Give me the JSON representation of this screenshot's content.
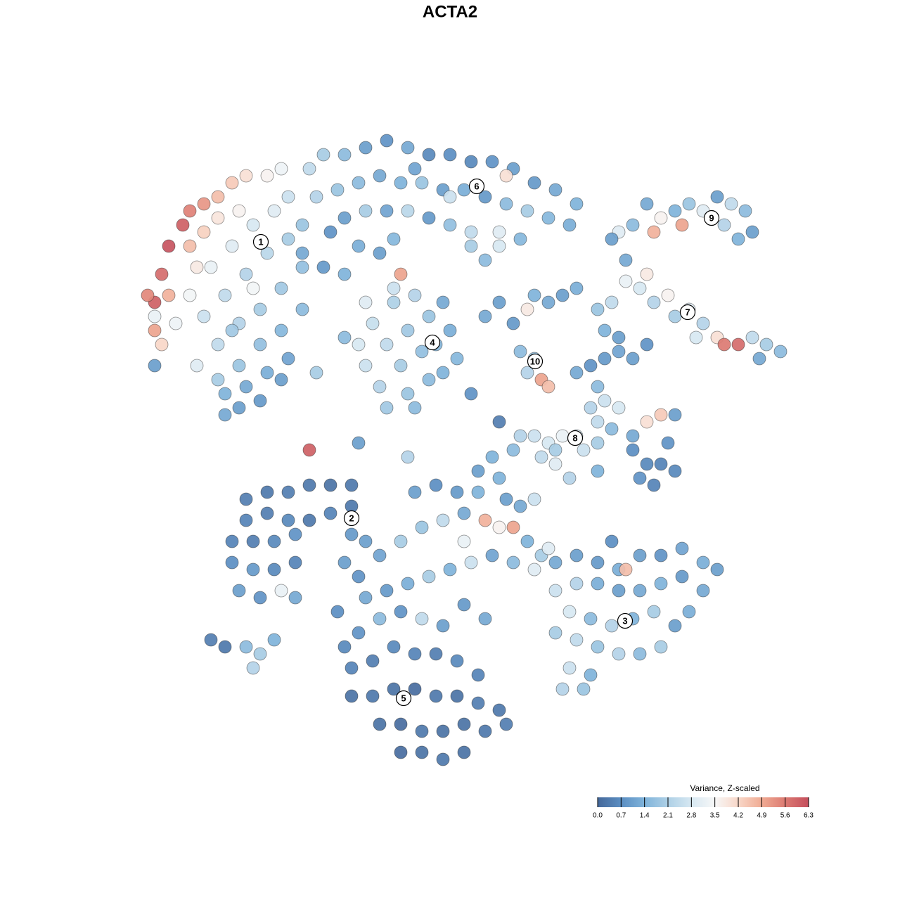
{
  "chart_data": {
    "type": "scatter",
    "title": "ACTA2",
    "legend_title": "Variance, Z-scaled",
    "clim": [
      0,
      6.3
    ],
    "cticks": [
      {
        "value": 0,
        "label": "0.0"
      },
      0.7,
      1.4,
      2.1,
      2.8,
      3.5,
      4.2,
      4.9,
      5.6,
      6.3
    ],
    "colorscale": [
      "#45689a",
      "#5b8ec2",
      "#7fb3da",
      "#aed0e6",
      "#d7e8f2",
      "#f7f7f7",
      "#f8d7c8",
      "#f0ab93",
      "#dc7a72",
      "#c44e5c"
    ],
    "legend_position": "bottom-right",
    "xlim": [
      0,
      94
    ],
    "ylim": [
      0,
      92
    ],
    "x": [
      3,
      4,
      5,
      7,
      8,
      10,
      12,
      14,
      16,
      19,
      21,
      3,
      2,
      5,
      8,
      10,
      12,
      15,
      9,
      4,
      3,
      6,
      8,
      11,
      14,
      17,
      20,
      22,
      10,
      13,
      16,
      19,
      22,
      24,
      12,
      15,
      18,
      21,
      24,
      9,
      12,
      15,
      18,
      21,
      24,
      13,
      16,
      19,
      22,
      13,
      15,
      18,
      21,
      17,
      14,
      25,
      27,
      30,
      33,
      36,
      39,
      42,
      45,
      48,
      51,
      54,
      57,
      60,
      63,
      26,
      29,
      32,
      35,
      38,
      41,
      44,
      47,
      50,
      53,
      56,
      59,
      62,
      30,
      33,
      36,
      39,
      42,
      45,
      48,
      52,
      55,
      28,
      32,
      35,
      27,
      30,
      24,
      45,
      53,
      37,
      40,
      32,
      33,
      34,
      35,
      36,
      37,
      38,
      39,
      39,
      40,
      41,
      42,
      42,
      43,
      44,
      45,
      46,
      44,
      36,
      40,
      33,
      38,
      37,
      50,
      52,
      54,
      56,
      57,
      59,
      61,
      63,
      55,
      57,
      58,
      59,
      56,
      48,
      50,
      52,
      71,
      73,
      75,
      77,
      79,
      81,
      83,
      85,
      87,
      88,
      86,
      84,
      74,
      78,
      69,
      70,
      68,
      66,
      68,
      70,
      72,
      74,
      76,
      77,
      79,
      81,
      83,
      84,
      86,
      88,
      90,
      92,
      89,
      80,
      73,
      67,
      69,
      63,
      65,
      67,
      69,
      71,
      73,
      66,
      65,
      67,
      69,
      66,
      68,
      71,
      73,
      75,
      77,
      71,
      73,
      75,
      77,
      72,
      74,
      76,
      55,
      57,
      59,
      61,
      63,
      60,
      54,
      51,
      49,
      52,
      58,
      66,
      64,
      60,
      62,
      66,
      25,
      32,
      39,
      52,
      48,
      30,
      26,
      3,
      16,
      19,
      22,
      25,
      28,
      31,
      16,
      19,
      22,
      25,
      28,
      31,
      14,
      17,
      20,
      23,
      14,
      17,
      20,
      23,
      15,
      18,
      21,
      23,
      31,
      33,
      11,
      13,
      16,
      18,
      17,
      20,
      30,
      32,
      35,
      38,
      41,
      44,
      47,
      50,
      52,
      54,
      56,
      58,
      40,
      43,
      46,
      49,
      53,
      55,
      57,
      47,
      33,
      36,
      39,
      42,
      45,
      48,
      51,
      54,
      57,
      32,
      35,
      38,
      41,
      44,
      47,
      50,
      31,
      34,
      37,
      40,
      43,
      46,
      49,
      31,
      34,
      37,
      40,
      43,
      46,
      49,
      52,
      35,
      38,
      41,
      44,
      47,
      50,
      53,
      38,
      41,
      44,
      47,
      30,
      29,
      60,
      63,
      66,
      69,
      72,
      75,
      78,
      81,
      83,
      60,
      63,
      66,
      69,
      72,
      75,
      78,
      81,
      62,
      65,
      68,
      71,
      74,
      77,
      79,
      60,
      63,
      66,
      69,
      72,
      75,
      62,
      65,
      61,
      64,
      70,
      68,
      59
    ],
    "y": [
      67,
      71,
      75,
      78,
      80,
      81,
      82,
      84,
      85,
      85,
      86,
      63,
      68,
      68,
      75,
      77,
      79,
      80,
      72,
      61,
      65,
      64,
      68,
      72,
      75,
      78,
      80,
      82,
      65,
      68,
      71,
      74,
      76,
      78,
      61,
      64,
      66,
      69,
      72,
      58,
      56,
      58,
      61,
      63,
      66,
      54,
      55,
      57,
      59,
      51,
      52,
      53,
      56,
      69,
      63,
      86,
      88,
      88,
      89,
      90,
      89,
      88,
      88,
      87,
      87,
      86,
      84,
      83,
      81,
      82,
      83,
      84,
      85,
      84,
      84,
      83,
      83,
      82,
      81,
      80,
      79,
      78,
      79,
      80,
      80,
      80,
      79,
      78,
      77,
      77,
      76,
      77,
      75,
      74,
      72,
      71,
      74,
      82,
      85,
      76,
      86,
      61,
      58,
      64,
      55,
      61,
      67,
      58,
      63,
      54,
      68,
      60,
      56,
      65,
      61,
      57,
      63,
      59,
      67,
      52,
      52,
      67,
      71,
      69,
      65,
      67,
      64,
      66,
      68,
      67,
      68,
      69,
      60,
      59,
      56,
      55,
      57,
      75,
      73,
      75,
      78,
      81,
      79,
      80,
      81,
      80,
      82,
      81,
      80,
      77,
      76,
      78,
      77,
      78,
      77,
      73,
      76,
      66,
      67,
      70,
      69,
      67,
      68,
      65,
      66,
      64,
      62,
      61,
      61,
      62,
      61,
      60,
      59,
      62,
      71,
      63,
      62,
      57,
      58,
      59,
      60,
      59,
      61,
      55,
      52,
      53,
      52,
      50,
      49,
      48,
      50,
      51,
      51,
      46,
      44,
      44,
      43,
      42,
      41,
      47,
      48,
      48,
      47,
      48,
      48,
      46,
      46,
      45,
      43,
      42,
      45,
      47,
      46,
      44,
      42,
      43,
      46,
      47,
      45,
      50,
      54,
      62,
      57,
      58,
      39,
      40,
      40,
      41,
      41,
      41,
      36,
      37,
      36,
      36,
      37,
      38,
      33,
      33,
      33,
      34,
      30,
      29,
      29,
      30,
      26,
      25,
      26,
      25,
      34,
      33,
      19,
      18,
      18,
      17,
      15,
      19,
      30,
      28,
      31,
      33,
      35,
      36,
      37,
      36,
      35,
      35,
      33,
      31,
      40,
      41,
      40,
      40,
      39,
      38,
      39,
      33,
      25,
      26,
      27,
      28,
      29,
      30,
      31,
      30,
      29,
      20,
      22,
      23,
      22,
      21,
      24,
      22,
      15,
      16,
      18,
      17,
      17,
      16,
      14,
      11,
      11,
      12,
      12,
      11,
      11,
      10,
      9,
      7,
      7,
      6,
      6,
      7,
      6,
      7,
      3,
      3,
      2,
      3,
      18,
      23,
      30,
      31,
      30,
      29,
      31,
      31,
      32,
      30,
      29,
      26,
      27,
      27,
      26,
      26,
      27,
      28,
      26,
      23,
      22,
      21,
      22,
      23,
      21,
      23,
      20,
      19,
      18,
      17,
      17,
      18,
      15,
      14,
      12,
      12,
      29,
      33,
      32
    ],
    "values": [
      6.0,
      5.8,
      6.2,
      6.0,
      5.5,
      5.2,
      4.6,
      4.4,
      4.0,
      3.6,
      3.3,
      5.0,
      5.4,
      4.8,
      4.6,
      4.3,
      3.9,
      3.6,
      3.8,
      4.2,
      3.2,
      3.3,
      3.4,
      3.2,
      3.0,
      2.8,
      3.0,
      2.6,
      2.6,
      2.4,
      2.2,
      2.3,
      2.0,
      1.8,
      2.4,
      2.2,
      2.0,
      1.9,
      1.7,
      3.0,
      2.0,
      1.8,
      1.7,
      1.5,
      1.6,
      1.4,
      1.2,
      1.3,
      1.1,
      1.2,
      1.0,
      0.9,
      1.0,
      3.4,
      1.9,
      2.4,
      2.0,
      1.6,
      1.0,
      0.8,
      1.2,
      0.6,
      0.7,
      0.6,
      0.8,
      1.0,
      0.9,
      1.2,
      1.4,
      2.2,
      1.8,
      1.6,
      1.2,
      1.4,
      1.8,
      1.0,
      1.3,
      0.9,
      1.6,
      2.0,
      1.5,
      1.3,
      1.0,
      2.0,
      1.1,
      2.3,
      0.9,
      1.7,
      2.4,
      3.0,
      1.5,
      0.8,
      1.3,
      1.0,
      0.9,
      1.4,
      1.2,
      2.6,
      4.0,
      1.5,
      1.1,
      2.8,
      2.6,
      2.5,
      2.2,
      2.4,
      2.1,
      2.0,
      1.9,
      1.8,
      2.2,
      1.7,
      1.6,
      1.8,
      1.5,
      1.4,
      1.3,
      1.5,
      1.2,
      1.9,
      1.6,
      3.0,
      5.0,
      2.6,
      1.2,
      1.0,
      0.9,
      3.8,
      1.4,
      1.2,
      1.0,
      1.3,
      1.6,
      1.8,
      5.0,
      4.6,
      2.2,
      2.0,
      1.6,
      2.8,
      1.6,
      1.2,
      3.6,
      1.4,
      1.8,
      3.0,
      1.0,
      2.4,
      1.6,
      1.0,
      1.4,
      2.2,
      4.8,
      5.0,
      3.0,
      1.2,
      1.0,
      1.8,
      2.4,
      3.2,
      2.8,
      2.2,
      3.6,
      2.0,
      3.0,
      2.2,
      4.0,
      5.6,
      5.8,
      2.4,
      2.0,
      1.6,
      1.2,
      2.8,
      3.8,
      1.4,
      1.0,
      1.2,
      0.8,
      0.9,
      1.1,
      1.0,
      0.8,
      1.6,
      2.2,
      2.6,
      2.8,
      2.4,
      1.6,
      1.2,
      4.0,
      4.4,
      1.0,
      0.7,
      0.6,
      0.5,
      0.6,
      0.8,
      0.5,
      0.8,
      2.2,
      2.6,
      2.8,
      3.2,
      2.8,
      2.0,
      1.6,
      1.4,
      1.0,
      1.4,
      2.4,
      2.0,
      2.6,
      3.0,
      2.2,
      1.4,
      6.0,
      1.0,
      2.2,
      0.4,
      0.8,
      1.6,
      2.0,
      1.0,
      0.4,
      0.3,
      0.4,
      0.3,
      0.2,
      0.3,
      0.5,
      0.4,
      0.6,
      0.3,
      0.5,
      0.3,
      0.5,
      0.4,
      0.6,
      0.8,
      0.7,
      0.9,
      0.6,
      0.5,
      1.0,
      0.8,
      3.2,
      1.2,
      0.9,
      1.0,
      0.4,
      0.3,
      1.6,
      2.0,
      2.2,
      1.4,
      1.0,
      0.8,
      1.1,
      2.0,
      1.8,
      2.4,
      1.2,
      4.8,
      3.6,
      5.0,
      1.4,
      2.0,
      1.0,
      0.7,
      0.9,
      1.4,
      1.0,
      1.2,
      2.6,
      3.2,
      1.2,
      0.9,
      1.3,
      2.0,
      1.4,
      2.6,
      1.1,
      1.6,
      3.0,
      0.8,
      1.6,
      0.8,
      2.4,
      1.0,
      0.9,
      1.2,
      0.5,
      0.4,
      0.6,
      0.5,
      0.4,
      0.6,
      0.5,
      0.2,
      0.3,
      0.2,
      0.1,
      0.3,
      0.2,
      0.4,
      0.3,
      0.2,
      0.1,
      0.3,
      0.2,
      0.2,
      0.3,
      0.4,
      0.1,
      0.2,
      0.3,
      0.2,
      0.6,
      0.7,
      1.2,
      1.0,
      0.9,
      1.3,
      1.0,
      0.8,
      1.1,
      1.3,
      1.0,
      2.6,
      2.2,
      1.3,
      1.0,
      1.2,
      1.4,
      0.9,
      1.2,
      2.8,
      1.6,
      2.2,
      1.4,
      2.0,
      1.0,
      1.3,
      2.0,
      2.4,
      1.8,
      2.2,
      1.6,
      2.0,
      2.6,
      1.4,
      2.2,
      1.8,
      4.6,
      0.7,
      3.0
    ],
    "clusters": [
      {
        "label": "1",
        "x": 18.1,
        "y": 75.6
      },
      {
        "label": "2",
        "x": 31,
        "y": 36.3
      },
      {
        "label": "3",
        "x": 69.9,
        "y": 21.7
      },
      {
        "label": "4",
        "x": 42.5,
        "y": 61.3
      },
      {
        "label": "5",
        "x": 38.4,
        "y": 10.7
      },
      {
        "label": "6",
        "x": 48.8,
        "y": 83.5
      },
      {
        "label": "7",
        "x": 78.8,
        "y": 65.6
      },
      {
        "label": "8",
        "x": 62.8,
        "y": 47.7
      },
      {
        "label": "9",
        "x": 82.2,
        "y": 79
      },
      {
        "label": "10",
        "x": 57.1,
        "y": 58.6
      }
    ]
  }
}
